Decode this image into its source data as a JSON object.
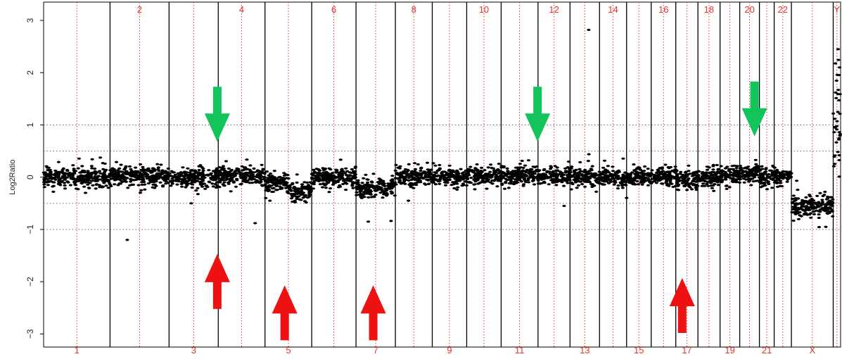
{
  "chart_data": {
    "type": "scatter",
    "title": "",
    "ylabel": "Log2Ratio",
    "xlabel": "",
    "ylim": [
      -3.25,
      3.35
    ],
    "y_ticks": [
      3,
      2,
      1,
      0,
      -1,
      -2,
      -3
    ],
    "reference_lines": [
      1,
      0.5,
      -0.5,
      -1
    ],
    "chromosomes": [
      "1",
      "2",
      "3",
      "4",
      "5",
      "6",
      "7",
      "8",
      "9",
      "10",
      "11",
      "12",
      "13",
      "14",
      "15",
      "16",
      "17",
      "18",
      "19",
      "20",
      "21",
      "22",
      "X",
      "Y"
    ],
    "top_labels": [
      "2",
      "4",
      "6",
      "8",
      "10",
      "12",
      "14",
      "16",
      "18",
      "20",
      "22",
      "Y"
    ],
    "bottom_labels": [
      "1",
      "3",
      "5",
      "7",
      "9",
      "11",
      "13",
      "15",
      "17",
      "19",
      "21",
      "X"
    ],
    "chromosome_bounds": [
      [
        0,
        1.35
      ],
      [
        1.35,
        2.55
      ],
      [
        2.55,
        3.55
      ],
      [
        3.55,
        4.5
      ],
      [
        4.5,
        5.45
      ],
      [
        5.45,
        6.35
      ],
      [
        6.35,
        7.15
      ],
      [
        7.15,
        7.9
      ],
      [
        7.9,
        8.6
      ],
      [
        8.6,
        9.3
      ],
      [
        9.3,
        10.05
      ],
      [
        10.05,
        10.7
      ],
      [
        10.7,
        11.3
      ],
      [
        11.3,
        11.85
      ],
      [
        11.85,
        12.35
      ],
      [
        12.35,
        12.85
      ],
      [
        12.85,
        13.3
      ],
      [
        13.3,
        13.75
      ],
      [
        13.75,
        14.15
      ],
      [
        14.15,
        14.55
      ],
      [
        14.55,
        14.85
      ],
      [
        14.85,
        15.2
      ],
      [
        15.2,
        16.05
      ],
      [
        16.05,
        16.2
      ]
    ],
    "segments": [
      {
        "chromosome": "1",
        "x_range": [
          0,
          1.35
        ],
        "level": 0.0
      },
      {
        "chromosome": "2",
        "x_range": [
          1.35,
          2.55
        ],
        "level": 0.02
      },
      {
        "chromosome": "3",
        "x_range": [
          2.55,
          3.55
        ],
        "level": -0.02
      },
      {
        "chromosome": "4",
        "x_range": [
          3.55,
          4.5
        ],
        "level": 0.02
      },
      {
        "chromosome": "5",
        "x_range": [
          4.5,
          4.95
        ],
        "level": -0.1
      },
      {
        "chromosome": "5",
        "x_range": [
          4.95,
          5.45
        ],
        "level": -0.25
      },
      {
        "chromosome": "6",
        "x_range": [
          5.45,
          6.35
        ],
        "level": 0.0
      },
      {
        "chromosome": "7",
        "x_range": [
          6.35,
          7.15
        ],
        "level": -0.2
      },
      {
        "chromosome": "8",
        "x_range": [
          7.15,
          7.9
        ],
        "level": 0.02
      },
      {
        "chromosome": "9",
        "x_range": [
          7.9,
          8.6
        ],
        "level": 0.0
      },
      {
        "chromosome": "10",
        "x_range": [
          8.6,
          9.3
        ],
        "level": 0.02
      },
      {
        "chromosome": "11",
        "x_range": [
          9.3,
          10.05
        ],
        "level": 0.05
      },
      {
        "chromosome": "12",
        "x_range": [
          10.05,
          10.7
        ],
        "level": 0.0
      },
      {
        "chromosome": "13",
        "x_range": [
          10.7,
          11.3
        ],
        "level": 0.0
      },
      {
        "chromosome": "14",
        "x_range": [
          11.3,
          11.85
        ],
        "level": 0.0
      },
      {
        "chromosome": "15",
        "x_range": [
          11.85,
          12.35
        ],
        "level": 0.0
      },
      {
        "chromosome": "16",
        "x_range": [
          12.35,
          12.85
        ],
        "level": 0.02
      },
      {
        "chromosome": "17",
        "x_range": [
          12.85,
          13.3
        ],
        "level": -0.05
      },
      {
        "chromosome": "18",
        "x_range": [
          13.3,
          13.75
        ],
        "level": 0.0
      },
      {
        "chromosome": "19",
        "x_range": [
          13.75,
          14.15
        ],
        "level": 0.02
      },
      {
        "chromosome": "20",
        "x_range": [
          14.15,
          14.55
        ],
        "level": 0.08
      },
      {
        "chromosome": "21",
        "x_range": [
          14.55,
          14.85
        ],
        "level": 0.0
      },
      {
        "chromosome": "22",
        "x_range": [
          14.85,
          15.2
        ],
        "level": 0.02
      },
      {
        "chromosome": "X",
        "x_range": [
          15.2,
          16.05
        ],
        "level": -0.55
      },
      {
        "chromosome": "Y",
        "x_range": [
          16.05,
          16.2
        ],
        "level": 1.0
      }
    ],
    "outliers": [
      {
        "x": 1.7,
        "y": -1.2
      },
      {
        "x": 4.3,
        "y": -0.88
      },
      {
        "x": 6.6,
        "y": -0.85
      },
      {
        "x": 11.08,
        "y": 2.82
      },
      {
        "x": 3.0,
        "y": -0.5
      },
      {
        "x": 16.15,
        "y": 2.45
      },
      {
        "x": 16.18,
        "y": 2.1
      },
      {
        "x": 16.1,
        "y": 1.62
      },
      {
        "x": 4.6,
        "y": -0.45
      },
      {
        "x": 10.58,
        "y": -0.55
      },
      {
        "x": 15.9,
        "y": -0.95
      }
    ],
    "arrows": [
      {
        "direction": "down",
        "color": "#12c45a",
        "x": 3.53,
        "y_tip": 0.68
      },
      {
        "direction": "down",
        "color": "#12c45a",
        "x": 10.04,
        "y_tip": 0.68
      },
      {
        "direction": "down",
        "color": "#12c45a",
        "x": 14.45,
        "y_tip": 0.78
      },
      {
        "direction": "up",
        "color": "#ee1111",
        "x": 3.53,
        "y_tip": -1.47
      },
      {
        "direction": "up",
        "color": "#ee1111",
        "x": 4.9,
        "y_tip": -2.07
      },
      {
        "direction": "up",
        "color": "#ee1111",
        "x": 6.7,
        "y_tip": -2.07
      },
      {
        "direction": "up",
        "color": "#ee1111",
        "x": 12.98,
        "y_tip": -1.93
      }
    ],
    "colors": {
      "points": "#000000",
      "chromosome_divider": "#000000",
      "centromere_line": "#e8322b",
      "reference_line": "#666666",
      "chromosome_label": "#e8322b"
    }
  }
}
